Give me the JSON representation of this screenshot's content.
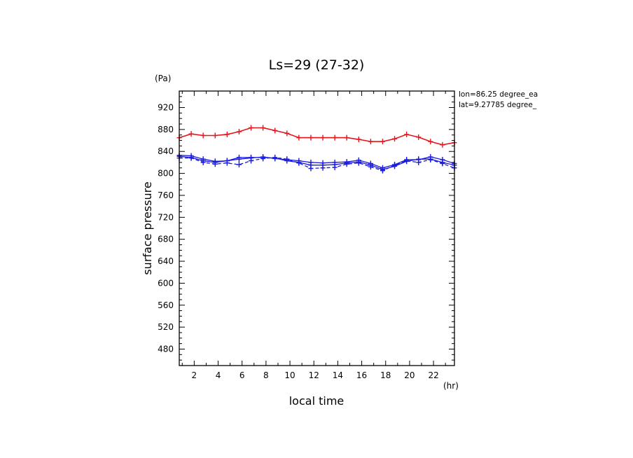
{
  "chart_data": {
    "type": "line",
    "title": "Ls=29 (27-32)",
    "xlabel": "local time",
    "ylabel": "surface pressure",
    "x_unit": "(hr)",
    "y_unit": "(Pa)",
    "annotations": [
      "lon=86.25 degree_ea",
      "lat=9.27785 degree_"
    ],
    "xlim": [
      0.75,
      23.75
    ],
    "ylim": [
      450,
      950
    ],
    "x_ticks": [
      2,
      4,
      6,
      8,
      10,
      12,
      14,
      16,
      18,
      20,
      22
    ],
    "y_ticks": [
      480,
      520,
      560,
      600,
      640,
      680,
      720,
      760,
      800,
      840,
      880,
      920
    ],
    "colors": {
      "red": "#e8141b",
      "blue": "#1a1ae0"
    },
    "x": [
      0.75,
      1.75,
      2.75,
      3.75,
      4.75,
      5.75,
      6.75,
      7.75,
      8.75,
      9.75,
      10.75,
      11.75,
      12.75,
      13.75,
      14.75,
      15.75,
      16.75,
      17.75,
      18.75,
      19.75,
      20.75,
      21.75,
      22.75,
      23.75
    ],
    "series": [
      {
        "color": "red",
        "style": "solid",
        "values": [
          865,
          872,
          869,
          869,
          871,
          876,
          883,
          883,
          878,
          873,
          865,
          865,
          865,
          865,
          865,
          862,
          858,
          858,
          863,
          871,
          866,
          858,
          852,
          856
        ]
      },
      {
        "color": "blue",
        "style": "solid",
        "values": [
          833,
          832,
          826,
          822,
          823,
          826,
          828,
          830,
          827,
          825,
          823,
          820,
          819,
          820,
          821,
          824,
          818,
          810,
          816,
          825,
          825,
          830,
          825,
          818
        ]
      },
      {
        "color": "blue",
        "style": "solid",
        "values": [
          831,
          829,
          823,
          820,
          823,
          829,
          829,
          829,
          828,
          823,
          820,
          815,
          815,
          816,
          819,
          821,
          815,
          807,
          813,
          822,
          826,
          826,
          820,
          815
        ]
      },
      {
        "color": "blue",
        "style": "dashed",
        "values": [
          828,
          828,
          820,
          817,
          819,
          816,
          823,
          827,
          829,
          826,
          819,
          809,
          810,
          811,
          817,
          819,
          812,
          805,
          815,
          823,
          820,
          825,
          818,
          810
        ]
      }
    ]
  }
}
